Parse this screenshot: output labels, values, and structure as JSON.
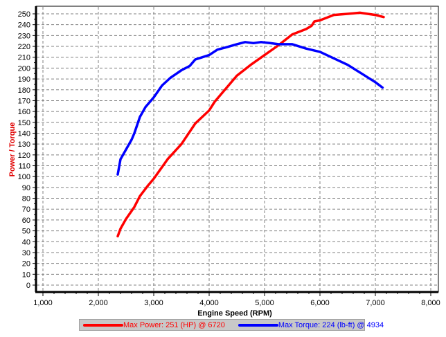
{
  "chart_data": {
    "type": "line",
    "title": "",
    "xlabel": "Engine Speed (RPM)",
    "ylabel": "Power / Torque",
    "xlim": [
      1000,
      8000
    ],
    "ylim": [
      0,
      250
    ],
    "x_ticks": [
      1000,
      2000,
      3000,
      4000,
      5000,
      6000,
      7000,
      8000
    ],
    "x_tick_labels": [
      "1,000",
      "2,000",
      "3,000",
      "4,000",
      "5,000",
      "6,000",
      "7,000",
      "8,000"
    ],
    "y_ticks": [
      0,
      10,
      20,
      30,
      40,
      50,
      60,
      70,
      80,
      90,
      100,
      110,
      120,
      130,
      140,
      150,
      160,
      170,
      180,
      190,
      200,
      210,
      220,
      230,
      240,
      250
    ],
    "grid": true,
    "legend_position": "bottom",
    "series": [
      {
        "name": "Max Power: 251 (HP) @ 6720",
        "color": "#ff0000",
        "x": [
          2350,
          2400,
          2500,
          2650,
          2750,
          2900,
          3000,
          3250,
          3500,
          3750,
          4000,
          4100,
          4250,
          4500,
          4750,
          5000,
          5250,
          5500,
          5750,
          5850,
          5900,
          6000,
          6250,
          6500,
          6720,
          7000,
          7150
        ],
        "values": [
          45,
          52,
          61,
          72,
          82,
          92,
          98,
          116,
          130,
          149,
          161,
          169,
          178,
          193,
          203,
          212,
          221,
          231,
          236,
          239,
          243,
          244,
          249,
          250,
          251,
          249,
          247
        ]
      },
      {
        "name": "Max Torque: 224 (lb-ft) @ 4934",
        "color": "#0000ff",
        "x": [
          2350,
          2400,
          2500,
          2600,
          2650,
          2750,
          2850,
          3000,
          3150,
          3300,
          3500,
          3650,
          3750,
          4000,
          4150,
          4300,
          4500,
          4650,
          4800,
          4934,
          5100,
          5250,
          5500,
          5750,
          6000,
          6250,
          6500,
          6750,
          7000,
          7130
        ],
        "values": [
          102,
          116,
          125,
          134,
          140,
          155,
          164,
          173,
          184,
          191,
          198,
          202,
          208,
          212,
          217,
          219,
          222,
          224,
          223,
          224,
          223,
          222,
          222,
          218,
          215,
          209,
          203,
          195,
          187,
          182
        ]
      }
    ]
  },
  "legend": {
    "items": [
      {
        "label": "Max Power: 251 (HP) @ 6720",
        "color": "#ff0000"
      },
      {
        "label": "Max Torque: 224 (lb-ft) @ 4934",
        "color": "#0000ff"
      }
    ]
  },
  "colors": {
    "ylabel": "#e00000",
    "xlabel": "#000000",
    "grid": "#808080",
    "legend_bg": "#c8c8c8"
  }
}
